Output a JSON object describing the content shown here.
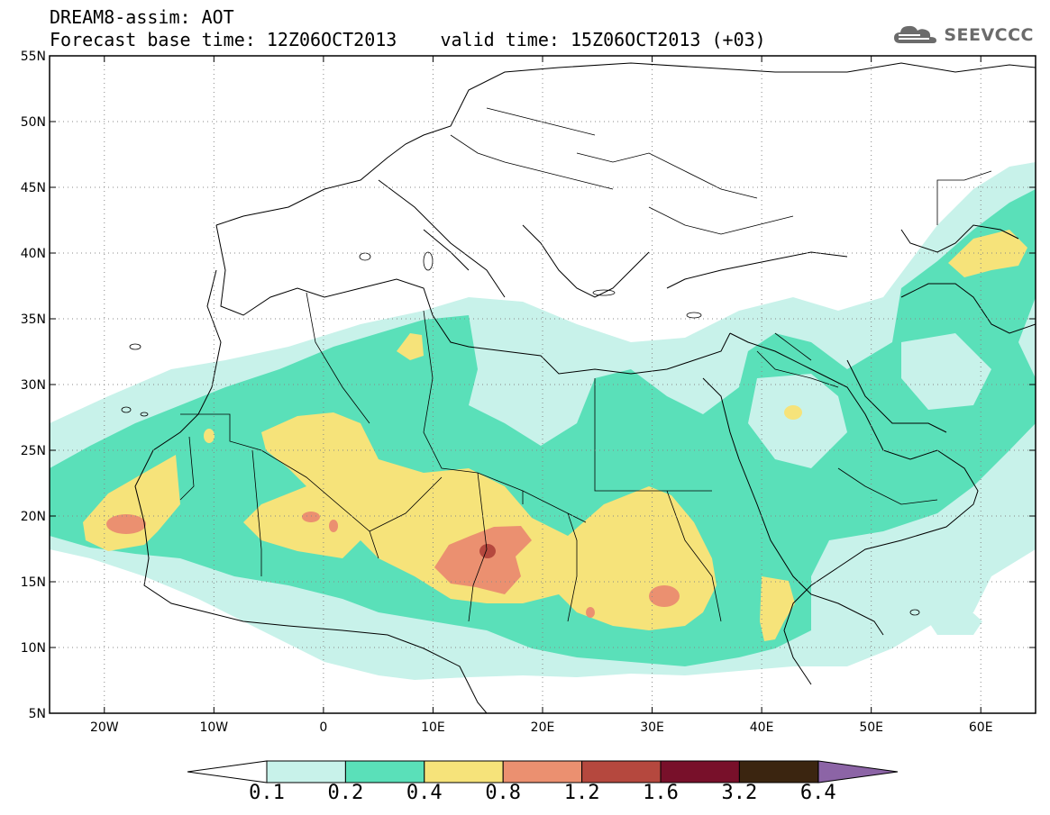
{
  "header": {
    "title": "DREAM8-assim: AOT",
    "subtitle": "Forecast base time: 12Z06OCT2013    valid time: 15Z06OCT2013 (+03)"
  },
  "brand": {
    "name": "SEEVCCC",
    "icon": "cloud-logo-icon"
  },
  "axes": {
    "lat_labels": [
      "55N",
      "50N",
      "45N",
      "40N",
      "35N",
      "30N",
      "25N",
      "20N",
      "15N",
      "10N",
      "5N"
    ],
    "lon_labels": [
      "20W",
      "10W",
      "0",
      "10E",
      "20E",
      "30E",
      "40E",
      "50E",
      "60E"
    ],
    "lat_values": [
      55,
      50,
      45,
      40,
      35,
      30,
      25,
      20,
      15,
      10,
      5
    ],
    "lon_values": [
      -20,
      -10,
      0,
      10,
      20,
      30,
      40,
      50,
      60
    ],
    "lon_range": [
      -25,
      65
    ],
    "lat_range": [
      5,
      55
    ],
    "grid": "dotted"
  },
  "colorbar": {
    "labels": [
      "0.1",
      "0.2",
      "0.4",
      "0.8",
      "1.2",
      "1.6",
      "3.2",
      "6.4"
    ],
    "colors": [
      "#ffffff",
      "#c8f2ea",
      "#5ae0b9",
      "#f6e37a",
      "#eb9070",
      "#b5483e",
      "#78102a",
      "#3b2510",
      "#8c64a6"
    ]
  },
  "fields": {
    "levels": [
      {
        "range": "0.1-0.2",
        "color": "#c8f2ea"
      },
      {
        "range": "0.2-0.4",
        "color": "#5ae0b9"
      },
      {
        "range": "0.4-0.8",
        "color": "#f6e37a"
      },
      {
        "range": "0.8-1.2",
        "color": "#eb9070"
      },
      {
        "range": "1.2-1.6",
        "color": "#b5483e"
      }
    ]
  }
}
